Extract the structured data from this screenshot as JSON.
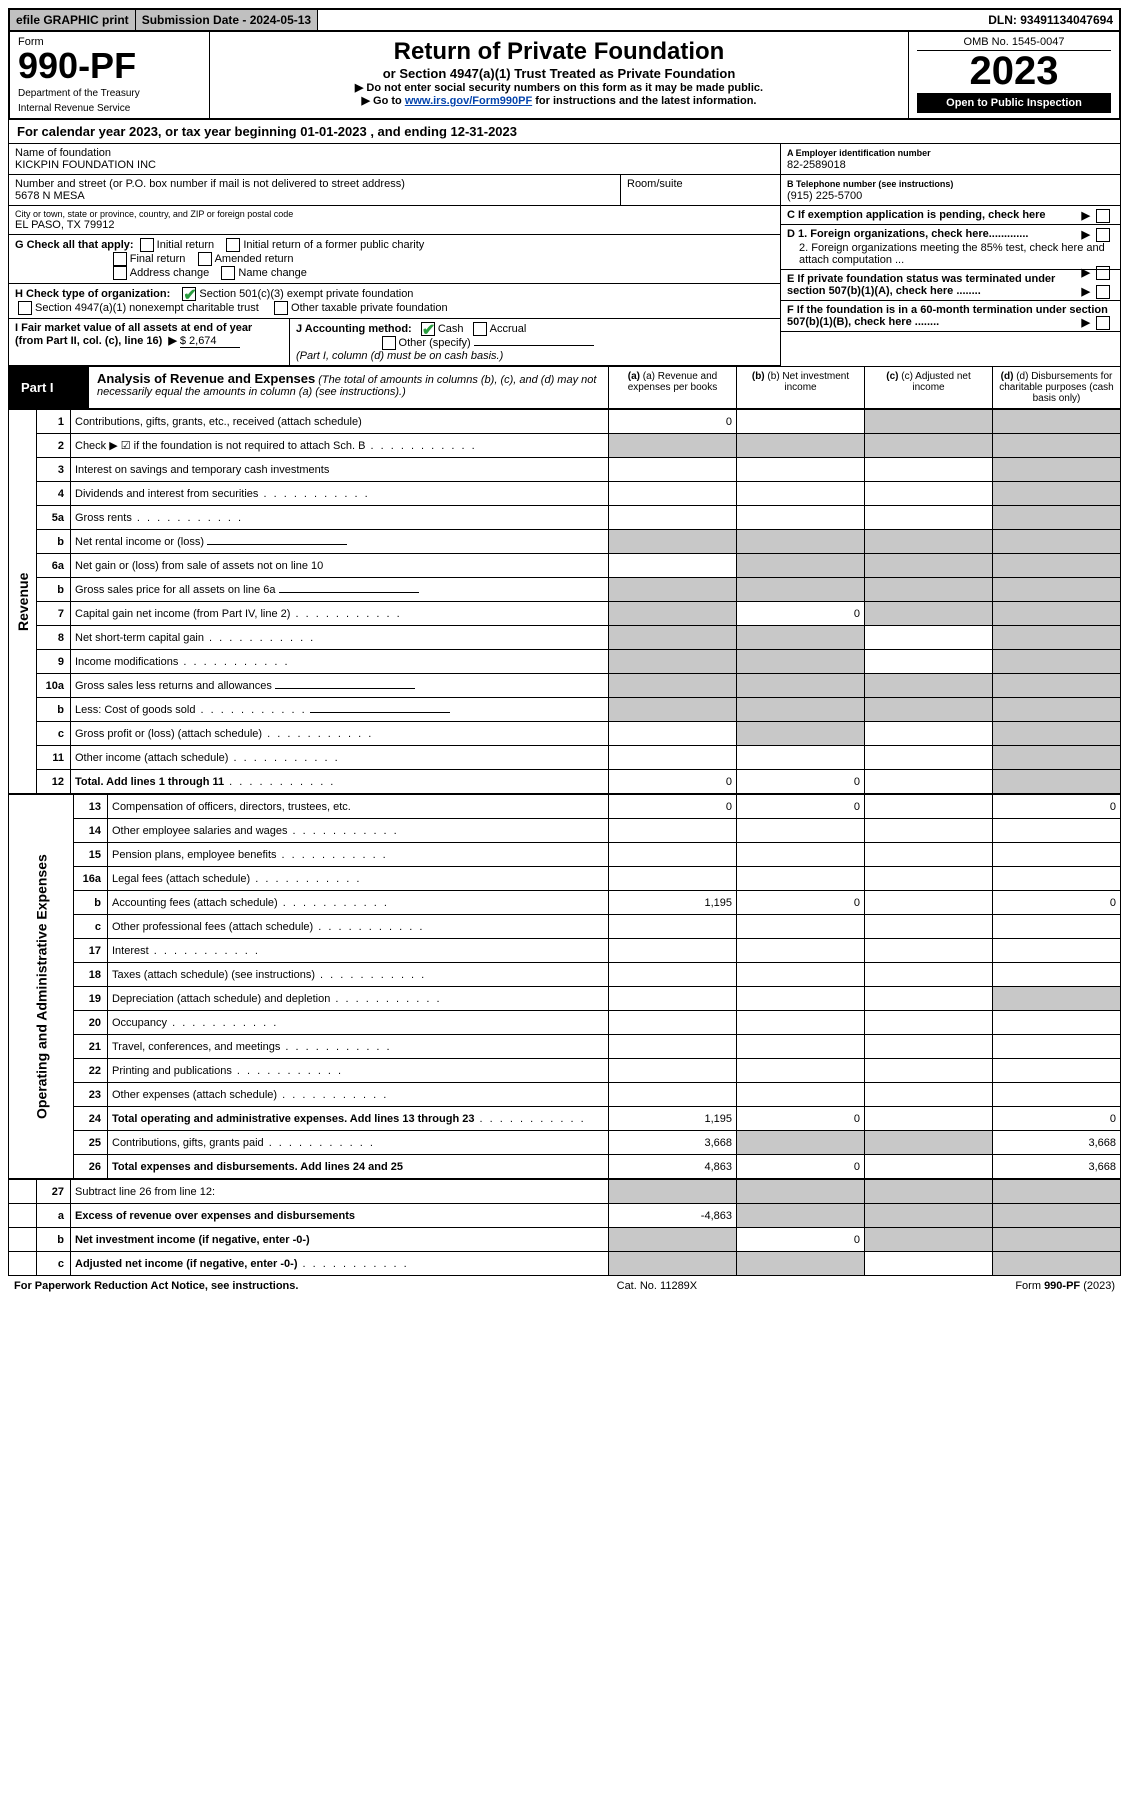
{
  "topbar": {
    "efile": "efile GRAPHIC print",
    "subdate_label": "Submission Date - 2024-05-13",
    "dln": "DLN: 93491134047694"
  },
  "header": {
    "form_word": "Form",
    "form_no": "990-PF",
    "dept1": "Department of the Treasury",
    "dept2": "Internal Revenue Service",
    "title": "Return of Private Foundation",
    "subtitle": "or Section 4947(a)(1) Trust Treated as Private Foundation",
    "instr1": "▶ Do not enter social security numbers on this form as it may be made public.",
    "instr2_pre": "▶ Go to ",
    "instr2_link": "www.irs.gov/Form990PF",
    "instr2_post": " for instructions and the latest information.",
    "omb": "OMB No. 1545-0047",
    "year": "2023",
    "open": "Open to Public Inspection"
  },
  "calendar_year": "For calendar year 2023, or tax year beginning 01-01-2023                          , and ending 12-31-2023",
  "name_block": {
    "lbl": "Name of foundation",
    "val": "KICKPIN FOUNDATION INC"
  },
  "addr_block": {
    "lbl": "Number and street (or P.O. box number if mail is not delivered to street address)",
    "val": "5678 N MESA",
    "room_lbl": "Room/suite"
  },
  "city_block": {
    "lbl": "City or town, state or province, country, and ZIP or foreign postal code",
    "val": "EL PASO, TX  79912"
  },
  "ein": {
    "lbl": "A Employer identification number",
    "val": "82-2589018"
  },
  "phone": {
    "lbl": "B Telephone number (see instructions)",
    "val": "(915) 225-5700"
  },
  "boxC": "C If exemption application is pending, check here",
  "boxG": {
    "lbl": "G Check all that apply:",
    "opts": [
      "Initial return",
      "Initial return of a former public charity",
      "Final return",
      "Amended return",
      "Address change",
      "Name change"
    ]
  },
  "boxD": {
    "d1": "D 1. Foreign organizations, check here.............",
    "d2": "2. Foreign organizations meeting the 85% test, check here and attach computation ..."
  },
  "boxH": {
    "lbl": "H Check type of organization:",
    "opt1": "Section 501(c)(3) exempt private foundation",
    "opt2": "Section 4947(a)(1) nonexempt charitable trust",
    "opt3": "Other taxable private foundation"
  },
  "boxE": "E  If private foundation status was terminated under section 507(b)(1)(A), check here ........",
  "boxI": {
    "lbl": "I Fair market value of all assets at end of year (from Part II, col. (c), line 16)",
    "val": "$  2,674"
  },
  "boxJ": {
    "lbl": "J Accounting method:",
    "cash": "Cash",
    "accrual": "Accrual",
    "other": "Other (specify)",
    "note": "(Part I, column (d) must be on cash basis.)"
  },
  "boxF": "F  If the foundation is in a 60-month termination under section 507(b)(1)(B), check here ........",
  "part1": {
    "label": "Part I",
    "title": "Analysis of Revenue and Expenses",
    "title_note": "(The total of amounts in columns (b), (c), and (d) may not necessarily equal the amounts in column (a) (see instructions).)",
    "col_a": "(a)   Revenue and expenses per books",
    "col_b": "(b)   Net investment income",
    "col_c": "(c)   Adjusted net income",
    "col_d": "(d)  Disbursements for charitable purposes (cash basis only)"
  },
  "side_labels": {
    "rev": "Revenue",
    "opex": "Operating and Administrative Expenses"
  },
  "rows": [
    {
      "n": "1",
      "t": "Contributions, gifts, grants, etc., received (attach schedule)",
      "a": "0",
      "shade": [
        "c",
        "d"
      ]
    },
    {
      "n": "2",
      "t": "Check ▶ ☑ if the foundation is not required to attach Sch. B",
      "dots": true,
      "shade": [
        "a",
        "b",
        "c",
        "d"
      ],
      "noborder": true
    },
    {
      "n": "3",
      "t": "Interest on savings and temporary cash investments",
      "shade": [
        "d"
      ]
    },
    {
      "n": "4",
      "t": "Dividends and interest from securities",
      "dots": true,
      "shade": [
        "d"
      ]
    },
    {
      "n": "5a",
      "t": "Gross rents",
      "dots": true,
      "shade": [
        "d"
      ]
    },
    {
      "n": "b",
      "t": "Net rental income or (loss)",
      "uline": true,
      "shade": [
        "a",
        "b",
        "c",
        "d"
      ]
    },
    {
      "n": "6a",
      "t": "Net gain or (loss) from sale of assets not on line 10",
      "shade": [
        "b",
        "c",
        "d"
      ]
    },
    {
      "n": "b",
      "t": "Gross sales price for all assets on line 6a",
      "uline": true,
      "shade": [
        "a",
        "b",
        "c",
        "d"
      ]
    },
    {
      "n": "7",
      "t": "Capital gain net income (from Part IV, line 2)",
      "dots": true,
      "b": "0",
      "shade": [
        "a",
        "c",
        "d"
      ]
    },
    {
      "n": "8",
      "t": "Net short-term capital gain",
      "dots": true,
      "shade": [
        "a",
        "b",
        "d"
      ]
    },
    {
      "n": "9",
      "t": "Income modifications",
      "dots": true,
      "shade": [
        "a",
        "b",
        "d"
      ]
    },
    {
      "n": "10a",
      "t": "Gross sales less returns and allowances",
      "uline": true,
      "shade": [
        "a",
        "b",
        "c",
        "d"
      ]
    },
    {
      "n": "b",
      "t": "Less: Cost of goods sold",
      "dots": true,
      "uline": true,
      "shade": [
        "a",
        "b",
        "c",
        "d"
      ]
    },
    {
      "n": "c",
      "t": "Gross profit or (loss) (attach schedule)",
      "dots": true,
      "shade": [
        "b",
        "d"
      ]
    },
    {
      "n": "11",
      "t": "Other income (attach schedule)",
      "dots": true,
      "shade": [
        "d"
      ]
    },
    {
      "n": "12",
      "t": "Total. Add lines 1 through 11",
      "dots": true,
      "bold": true,
      "a": "0",
      "b": "0",
      "shade": [
        "d"
      ]
    }
  ],
  "rows2": [
    {
      "n": "13",
      "t": "Compensation of officers, directors, trustees, etc.",
      "a": "0",
      "b": "0",
      "d": "0"
    },
    {
      "n": "14",
      "t": "Other employee salaries and wages",
      "dots": true
    },
    {
      "n": "15",
      "t": "Pension plans, employee benefits",
      "dots": true
    },
    {
      "n": "16a",
      "t": "Legal fees (attach schedule)",
      "dots": true
    },
    {
      "n": "b",
      "t": "Accounting fees (attach schedule)",
      "dots": true,
      "a": "1,195",
      "b": "0",
      "d": "0"
    },
    {
      "n": "c",
      "t": "Other professional fees (attach schedule)",
      "dots": true
    },
    {
      "n": "17",
      "t": "Interest",
      "dots": true
    },
    {
      "n": "18",
      "t": "Taxes (attach schedule) (see instructions)",
      "dots": true
    },
    {
      "n": "19",
      "t": "Depreciation (attach schedule) and depletion",
      "dots": true,
      "shade": [
        "d"
      ]
    },
    {
      "n": "20",
      "t": "Occupancy",
      "dots": true
    },
    {
      "n": "21",
      "t": "Travel, conferences, and meetings",
      "dots": true
    },
    {
      "n": "22",
      "t": "Printing and publications",
      "dots": true
    },
    {
      "n": "23",
      "t": "Other expenses (attach schedule)",
      "dots": true
    },
    {
      "n": "24",
      "t": "Total operating and administrative expenses. Add lines 13 through 23",
      "dots": true,
      "bold": true,
      "a": "1,195",
      "b": "0",
      "d": "0"
    },
    {
      "n": "25",
      "t": "Contributions, gifts, grants paid",
      "dots": true,
      "a": "3,668",
      "d": "3,668",
      "shade": [
        "b",
        "c"
      ]
    },
    {
      "n": "26",
      "t": "Total expenses and disbursements. Add lines 24 and 25",
      "bold": true,
      "a": "4,863",
      "b": "0",
      "d": "3,668"
    }
  ],
  "rows3": [
    {
      "n": "27",
      "t": "Subtract line 26 from line 12:",
      "shade": [
        "a",
        "b",
        "c",
        "d"
      ]
    },
    {
      "n": "a",
      "t": "Excess of revenue over expenses and disbursements",
      "bold": true,
      "a": "-4,863",
      "shade": [
        "b",
        "c",
        "d"
      ]
    },
    {
      "n": "b",
      "t": "Net investment income (if negative, enter -0-)",
      "bold": true,
      "b": "0",
      "shade": [
        "a",
        "c",
        "d"
      ]
    },
    {
      "n": "c",
      "t": "Adjusted net income (if negative, enter -0-)",
      "bold": true,
      "dots": true,
      "shade": [
        "a",
        "b",
        "d"
      ]
    }
  ],
  "footer": {
    "left": "For Paperwork Reduction Act Notice, see instructions.",
    "mid": "Cat. No. 11289X",
    "right": "Form 990-PF (2023)"
  },
  "colors": {
    "check_green": "#2a9d3f",
    "shade": "#c8c8c8",
    "link": "#0645ad"
  }
}
